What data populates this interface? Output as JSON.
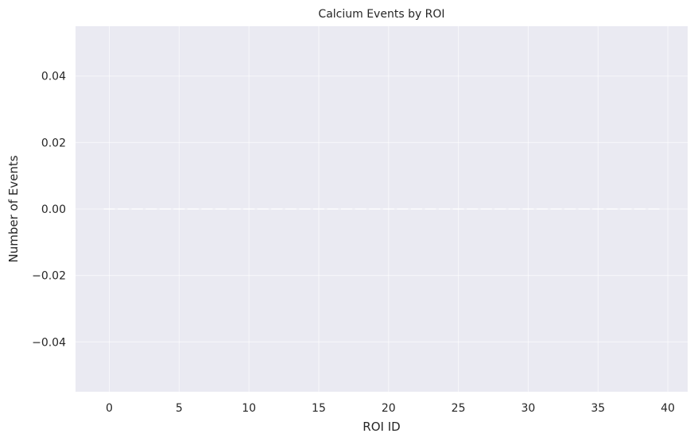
{
  "chart_data": {
    "type": "bar",
    "title": "Calcium Events by ROI",
    "xlabel": "ROI ID",
    "ylabel": "Number of Events",
    "x": [
      0,
      1,
      2,
      3,
      4,
      5,
      6,
      7,
      8,
      9,
      10,
      11,
      12,
      13,
      14,
      15,
      16,
      17,
      18,
      19,
      20,
      21,
      22,
      23,
      24,
      25,
      26,
      27,
      28,
      29,
      30,
      31,
      32,
      33,
      34,
      35,
      36,
      37,
      38,
      39
    ],
    "values": [
      0,
      0,
      0,
      0,
      0,
      0,
      0,
      0,
      0,
      0,
      0,
      0,
      0,
      0,
      0,
      0,
      0,
      0,
      0,
      0,
      0,
      0,
      0,
      0,
      0,
      0,
      0,
      0,
      0,
      0,
      0,
      0,
      0,
      0,
      0,
      0,
      0,
      0,
      0,
      0
    ],
    "xlim": [
      -2.42,
      41.42
    ],
    "ylim": [
      -0.055,
      0.055
    ],
    "xticks": [
      0,
      5,
      10,
      15,
      20,
      25,
      30,
      35,
      40
    ],
    "xtick_labels": [
      "0",
      "5",
      "10",
      "15",
      "20",
      "25",
      "30",
      "35",
      "40"
    ],
    "yticks": [
      -0.04,
      -0.02,
      0.0,
      0.02,
      0.04
    ],
    "ytick_labels": [
      "−0.04",
      "−0.02",
      "0.00",
      "0.02",
      "0.04"
    ],
    "grid": true,
    "colors": {
      "plot_background": "#eaeaf2",
      "grid": "#ffffff",
      "bar_edge": "#ffffff",
      "text": "#262626"
    }
  }
}
